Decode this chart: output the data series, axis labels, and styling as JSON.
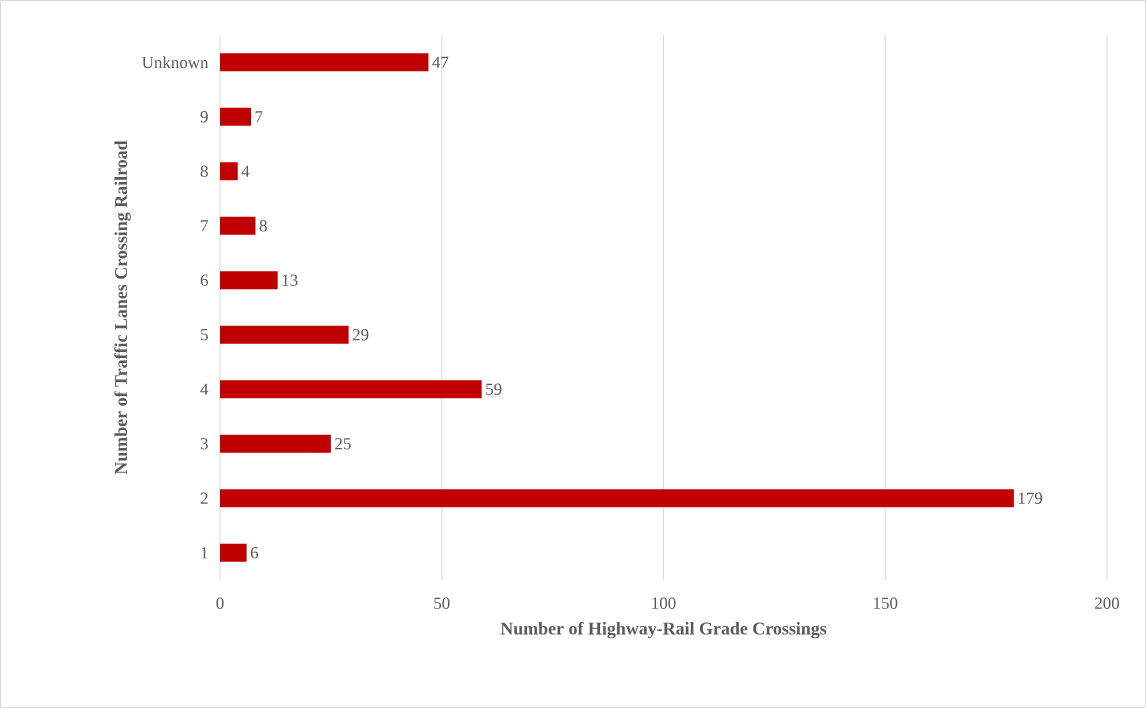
{
  "chart_data": {
    "type": "bar",
    "orientation": "horizontal",
    "xlabel": "Number of Highway-Rail Grade Crossings",
    "ylabel": "Number of Traffic Lanes Crossing Railroad",
    "categories": [
      "Unknown",
      "9",
      "8",
      "7",
      "6",
      "5",
      "4",
      "3",
      "2",
      "1"
    ],
    "values": [
      47,
      7,
      4,
      8,
      13,
      29,
      59,
      25,
      179,
      6
    ],
    "color": "#c00000",
    "xlim": [
      0,
      200
    ],
    "xticks": [
      0,
      50,
      100,
      150,
      200
    ],
    "grid": "x",
    "data_labels": true
  }
}
